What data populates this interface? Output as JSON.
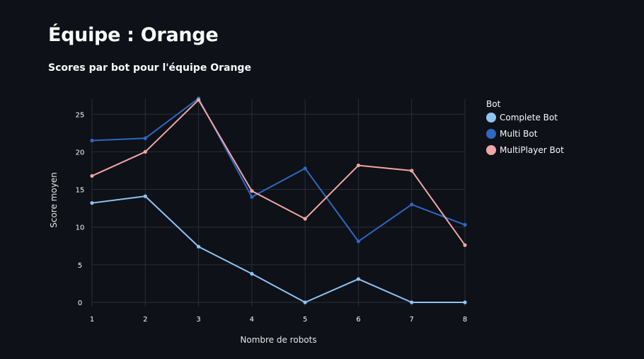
{
  "header": {
    "title": "Équipe : Orange"
  },
  "chart_data": {
    "type": "line",
    "title": "Scores par bot pour l'équipe Orange",
    "xlabel": "Nombre de robots",
    "ylabel": "Score moyen",
    "x": [
      1,
      2,
      3,
      4,
      5,
      6,
      7,
      8
    ],
    "xlim": [
      1,
      8
    ],
    "ylim": [
      0,
      27
    ],
    "yticks": [
      0,
      5,
      10,
      15,
      20,
      25
    ],
    "grid": true,
    "legend": {
      "title": "Bot",
      "position": "right"
    },
    "series": [
      {
        "name": "Complete Bot",
        "color": "#8ec4f5",
        "values": [
          13.2,
          14.1,
          7.4,
          3.8,
          0,
          3.1,
          0,
          0
        ]
      },
      {
        "name": "Multi Bot",
        "color": "#2d68c4",
        "values": [
          21.5,
          21.8,
          27.1,
          14.0,
          17.8,
          8.1,
          13.0,
          10.3
        ]
      },
      {
        "name": "MultiPlayer Bot",
        "color": "#f0a6a6",
        "values": [
          16.8,
          20.0,
          26.9,
          14.8,
          11.1,
          18.2,
          17.5,
          7.6
        ]
      }
    ]
  }
}
